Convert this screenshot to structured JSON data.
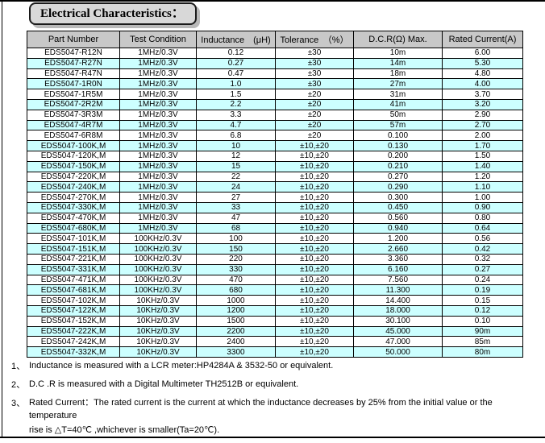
{
  "page": {
    "title": "Electrical Characteristics："
  },
  "colors": {
    "row_alt_cyan": "#ccffff",
    "header_gray": "#c8c8c8",
    "title_box_gray": "#d8d8d8",
    "border_black": "#000000"
  },
  "table": {
    "headers": [
      "Part Number",
      "Test Condition",
      "Inductance　(μH)",
      "Tolerance　（%）",
      "D.C.R(Ω) Max.",
      "Rated Current(A)"
    ],
    "rows": [
      [
        "EDS5047-R12N",
        "1MHz/0.3V",
        "0.12",
        "±30",
        "10m",
        "6.00"
      ],
      [
        "EDS5047-R27N",
        "1MHz/0.3V",
        "0.27",
        "±30",
        "14m",
        "5.30"
      ],
      [
        "EDS5047-R47N",
        "1MHz/0.3V",
        "0.47",
        "±30",
        "18m",
        "4.80"
      ],
      [
        "EDS5047-1R0N",
        "1MHz/0.3V",
        "1.0",
        "±30",
        "27m",
        "4.00"
      ],
      [
        "EDS5047-1R5M",
        "1MHz/0.3V",
        "1.5",
        "±20",
        "31m",
        "3.70"
      ],
      [
        "EDS5047-2R2M",
        "1MHz/0.3V",
        "2.2",
        "±20",
        "41m",
        "3.20"
      ],
      [
        "EDS5047-3R3M",
        "1MHz/0.3V",
        "3.3",
        "±20",
        "50m",
        "2.90"
      ],
      [
        "EDS5047-4R7M",
        "1MHz/0.3V",
        "4.7",
        "±20",
        "57m",
        "2.70"
      ],
      [
        "EDS5047-6R8M",
        "1MHz/0.3V",
        "6.8",
        "±20",
        "0.100",
        "2.00"
      ],
      [
        "EDS5047-100K,M",
        "1MHz/0.3V",
        "10",
        "±10,±20",
        "0.130",
        "1.70"
      ],
      [
        "EDS5047-120K,M",
        "1MHz/0.3V",
        "12",
        "±10,±20",
        "0.200",
        "1.50"
      ],
      [
        "EDS5047-150K,M",
        "1MHz/0.3V",
        "15",
        "±10,±20",
        "0.210",
        "1.40"
      ],
      [
        "EDS5047-220K,M",
        "1MHz/0.3V",
        "22",
        "±10,±20",
        "0.270",
        "1.20"
      ],
      [
        "EDS5047-240K,M",
        "1MHz/0.3V",
        "24",
        "±10,±20",
        "0.290",
        "1.10"
      ],
      [
        "EDS5047-270K,M",
        "1MHz/0.3V",
        "27",
        "±10,±20",
        "0.300",
        "1.00"
      ],
      [
        "EDS5047-330K,M",
        "1MHz/0.3V",
        "33",
        "±10,±20",
        "0.450",
        "0.90"
      ],
      [
        "EDS5047-470K,M",
        "1MHz/0.3V",
        "47",
        "±10,±20",
        "0.560",
        "0.80"
      ],
      [
        "EDS5047-680K,M",
        "1MHz/0.3V",
        "68",
        "±10,±20",
        "0.940",
        "0.64"
      ],
      [
        "EDS5047-101K,M",
        "100KHz/0.3V",
        "100",
        "±10,±20",
        "1.200",
        "0.56"
      ],
      [
        "EDS5047-151K,M",
        "100KHz/0.3V",
        "150",
        "±10,±20",
        "2.660",
        "0.42"
      ],
      [
        "EDS5047-221K,M",
        "100KHz/0.3V",
        "220",
        "±10,±20",
        "3.360",
        "0.32"
      ],
      [
        "EDS5047-331K,M",
        "100KHz/0.3V",
        "330",
        "±10,±20",
        "6.160",
        "0.27"
      ],
      [
        "EDS5047-471K,M",
        "100KHz/0.3V",
        "470",
        "±10,±20",
        "7.560",
        "0.24"
      ],
      [
        "EDS5047-681K,M",
        "100KHz/0.3V",
        "680",
        "±10,±20",
        "11.300",
        "0.19"
      ],
      [
        "EDS5047-102K,M",
        "10KHz/0.3V",
        "1000",
        "±10,±20",
        "14.400",
        "0.15"
      ],
      [
        "EDS5047-122K,M",
        "10KHz/0.3V",
        "1200",
        "±10,±20",
        "18.000",
        "0.12"
      ],
      [
        "EDS5047-152K,M",
        "10KHz/0.3V",
        "1500",
        "±10,±20",
        "30.100",
        "0.10"
      ],
      [
        "EDS5047-222K,M",
        "10KHz/0.3V",
        "2200",
        "±10,±20",
        "45.000",
        "90m"
      ],
      [
        "EDS5047-242K,M",
        "10KHz/0.3V",
        "2400",
        "±10,±20",
        "47.000",
        "85m"
      ],
      [
        "EDS5047-332K,M",
        "10KHz/0.3V",
        "3300",
        "±10,±20",
        "50.000",
        "80m"
      ]
    ]
  },
  "notes": [
    {
      "marker": "1、",
      "line1": "Inductance is measured with a LCR meter:HP4284A & 3532-50 or equivalent.",
      "line2": ""
    },
    {
      "marker": "2、",
      "line1": "D.C .R is measured with a Digital Multimeter TH2512B or equivalent.",
      "line2": ""
    },
    {
      "marker": "3、",
      "line1": "Rated Current：The rated current is the current at which the inductance decreases by 25% from the initial value or the temperature",
      "line2": "rise is △T=40℃ ,whichever is smaller(Ta=20℃)."
    }
  ]
}
